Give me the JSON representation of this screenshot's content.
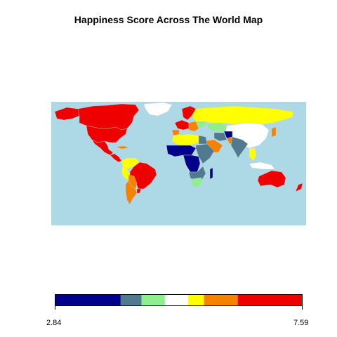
{
  "title": "Happiness Score Across The World Map",
  "colors": {
    "ocean": "#add8e6",
    "border": "#cfcfcf"
  },
  "legend": {
    "min_label": "2.84",
    "max_label": "7.59",
    "min": 2.84,
    "max": 7.59,
    "bins": [
      {
        "from": 2.84,
        "to": 4.1,
        "color": "#00008b"
      },
      {
        "from": 4.1,
        "to": 4.5,
        "color": "#4f7a8f"
      },
      {
        "from": 4.5,
        "to": 4.95,
        "color": "#90ee90"
      },
      {
        "from": 4.95,
        "to": 5.4,
        "color": "#ffffff"
      },
      {
        "from": 5.4,
        "to": 5.7,
        "color": "#ffff00"
      },
      {
        "from": 5.7,
        "to": 6.35,
        "color": "#f58200"
      },
      {
        "from": 6.35,
        "to": 7.59,
        "color": "#ee0000"
      }
    ]
  },
  "regions": [
    {
      "name": "canada",
      "color": "#ee0000"
    },
    {
      "name": "alaska",
      "color": "#ee0000"
    },
    {
      "name": "greenland",
      "color": "#ffffff"
    },
    {
      "name": "usa",
      "color": "#ee0000"
    },
    {
      "name": "mexico",
      "color": "#ee0000"
    },
    {
      "name": "central-america",
      "color": "#ee0000"
    },
    {
      "name": "cuba",
      "color": "#f58200"
    },
    {
      "name": "colombia-venezuela",
      "color": "#ffff00"
    },
    {
      "name": "brazil",
      "color": "#ee0000"
    },
    {
      "name": "peru",
      "color": "#ffff00"
    },
    {
      "name": "bolivia-paraguay",
      "color": "#f58200"
    },
    {
      "name": "argentina-chile",
      "color": "#f58200"
    },
    {
      "name": "uruguay",
      "color": "#ee0000"
    },
    {
      "name": "scandinavia",
      "color": "#ee0000"
    },
    {
      "name": "western-europe",
      "color": "#ee0000"
    },
    {
      "name": "iberia",
      "color": "#f58200"
    },
    {
      "name": "eastern-europe",
      "color": "#f58200"
    },
    {
      "name": "ukraine",
      "color": "#90ee90"
    },
    {
      "name": "russia",
      "color": "#ffff00"
    },
    {
      "name": "kazakhstan",
      "color": "#90ee90"
    },
    {
      "name": "mongolia-china",
      "color": "#ffffff"
    },
    {
      "name": "north-africa",
      "color": "#ffff00"
    },
    {
      "name": "egypt",
      "color": "#4f7a8f"
    },
    {
      "name": "west-africa",
      "color": "#00008b"
    },
    {
      "name": "central-africa",
      "color": "#00008b"
    },
    {
      "name": "east-africa",
      "color": "#4f7a8f"
    },
    {
      "name": "southern-africa",
      "color": "#4f7a8f"
    },
    {
      "name": "south-africa",
      "color": "#90ee90"
    },
    {
      "name": "madagascar",
      "color": "#00008b"
    },
    {
      "name": "arabia",
      "color": "#f58200"
    },
    {
      "name": "iran",
      "color": "#4f7a8f"
    },
    {
      "name": "afghanistan",
      "color": "#00008b"
    },
    {
      "name": "pakistan",
      "color": "#f58200"
    },
    {
      "name": "india",
      "color": "#4f7a8f"
    },
    {
      "name": "southeast-asia",
      "color": "#ffff00"
    },
    {
      "name": "indonesia",
      "color": "#ffffff"
    },
    {
      "name": "japan",
      "color": "#f58200"
    },
    {
      "name": "australia",
      "color": "#ee0000"
    },
    {
      "name": "new-zealand",
      "color": "#ee0000"
    }
  ]
}
